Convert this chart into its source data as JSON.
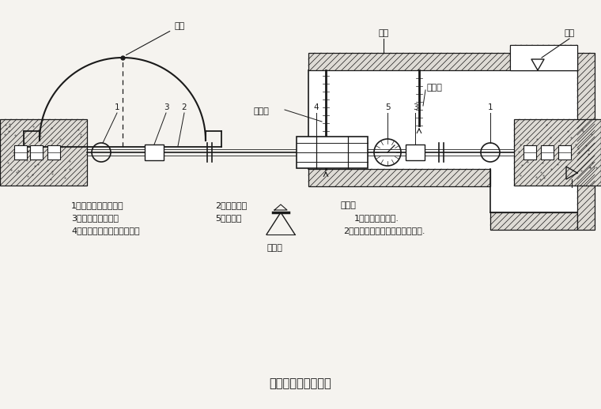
{
  "title": "主要量测方法示意图",
  "bg_color": "#f5f3ef",
  "line_color": "#1a1a1a",
  "labels": {
    "crown_point": "测点",
    "level_gauge": "水准尺",
    "inverted_staff": "倒装尺",
    "level_instrument": "水平仪",
    "turn_point": "转点",
    "measure_point": "测点",
    "note_header": "说明：",
    "note1": "1、洞内观察未述.",
    "note2": "2、其它量测项目按有关说明实施.",
    "legend1a": "1、净空变位仪矩锚杆",
    "legend1b": "2、带孔钢尺",
    "legend2a": "3、有球铰的连接杆",
    "legend2b": "5、百分表",
    "legend3": "4、维持张拉钢尺拉力的装置"
  },
  "font_size": 8.0,
  "title_font_size": 10.5
}
